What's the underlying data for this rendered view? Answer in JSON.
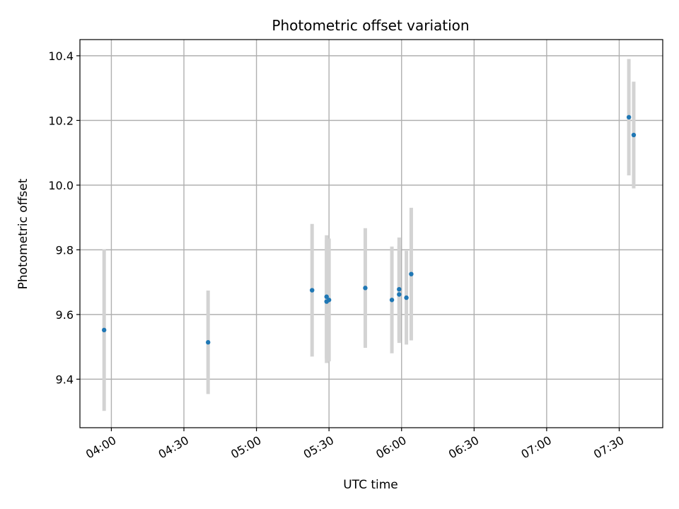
{
  "chart_data": {
    "type": "scatter",
    "title": "Photometric offset variation",
    "xlabel": "UTC time",
    "ylabel": "Photometric offset",
    "x_axis_kind": "time",
    "xlim": [
      "03:47",
      "07:48"
    ],
    "ylim": [
      9.25,
      10.45
    ],
    "xticks": [
      "04:00",
      "04:30",
      "05:00",
      "05:30",
      "06:00",
      "06:30",
      "07:00",
      "07:30"
    ],
    "yticks": [
      9.4,
      9.6,
      9.8,
      10.0,
      10.2,
      10.4
    ],
    "ytick_labels": [
      "9.4",
      "9.6",
      "9.8",
      "10.0",
      "10.2",
      "10.4"
    ],
    "grid": true,
    "colors": {
      "point": "#1f77b4",
      "errorbar": "#d3d3d3",
      "grid": "#b0b0b0"
    },
    "series": [
      {
        "points": [
          {
            "x": "03:57",
            "y": 9.552,
            "err": 0.25
          },
          {
            "x": "04:40",
            "y": 9.514,
            "err": 0.16
          },
          {
            "x": "05:23",
            "y": 9.675,
            "err": 0.205
          },
          {
            "x": "05:29",
            "y": 9.64,
            "err": 0.19
          },
          {
            "x": "05:29",
            "y": 9.655,
            "err": 0.19
          },
          {
            "x": "05:30",
            "y": 9.645,
            "err": 0.19
          },
          {
            "x": "05:45",
            "y": 9.682,
            "err": 0.185
          },
          {
            "x": "05:56",
            "y": 9.645,
            "err": 0.165
          },
          {
            "x": "05:59",
            "y": 9.678,
            "err": 0.16
          },
          {
            "x": "05:59",
            "y": 9.662,
            "err": 0.15
          },
          {
            "x": "06:02",
            "y": 9.652,
            "err": 0.145
          },
          {
            "x": "06:04",
            "y": 9.725,
            "err": 0.205
          },
          {
            "x": "07:34",
            "y": 10.21,
            "err": 0.18
          },
          {
            "x": "07:36",
            "y": 10.155,
            "err": 0.165
          }
        ]
      }
    ]
  }
}
